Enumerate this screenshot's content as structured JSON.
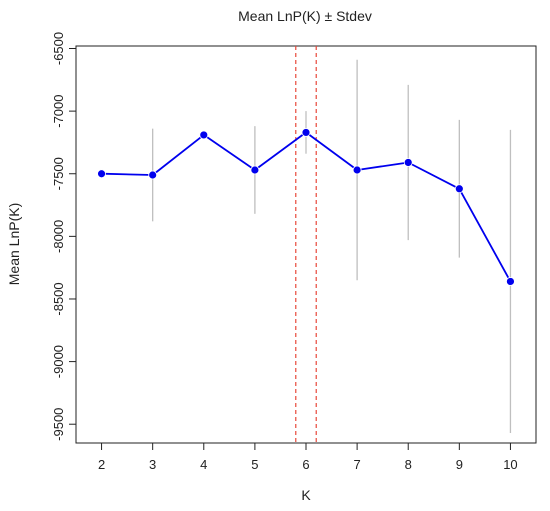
{
  "chart_data": {
    "type": "line",
    "title": "Mean LnP(K) ± Stdev",
    "xlabel": "K",
    "ylabel": "Mean LnP(K)",
    "x": [
      2,
      3,
      4,
      5,
      6,
      7,
      8,
      9,
      10
    ],
    "xlim": [
      1.5,
      10.5
    ],
    "ylim": [
      -9650,
      -6480
    ],
    "x_ticks": [
      "2",
      "3",
      "4",
      "5",
      "6",
      "7",
      "8",
      "9",
      "10"
    ],
    "y_ticks": [
      "-6500",
      "-7000",
      "-7500",
      "-8000",
      "-8500",
      "-9000",
      "-9500"
    ],
    "y_tick_values": [
      -6500,
      -7000,
      -7500,
      -8000,
      -8500,
      -9000,
      -9500
    ],
    "series": [
      {
        "mean": [
          -7500,
          -7510,
          -7190,
          -7470,
          -7170,
          -7470,
          -7410,
          -7620,
          -8360
        ],
        "stdev": [
          0,
          370,
          0,
          350,
          170,
          880,
          620,
          550,
          1210
        ],
        "line_color": "#0000ee",
        "point_color": "#0000ee",
        "errorbar_color": "#bfbfbf"
      }
    ],
    "reference_lines": [
      {
        "orientation": "vertical",
        "x": 5.8,
        "color": "#e8483a",
        "style": "dashed"
      },
      {
        "orientation": "vertical",
        "x": 6.2,
        "color": "#e8483a",
        "style": "dashed"
      }
    ],
    "grid": false,
    "legend": "none"
  }
}
